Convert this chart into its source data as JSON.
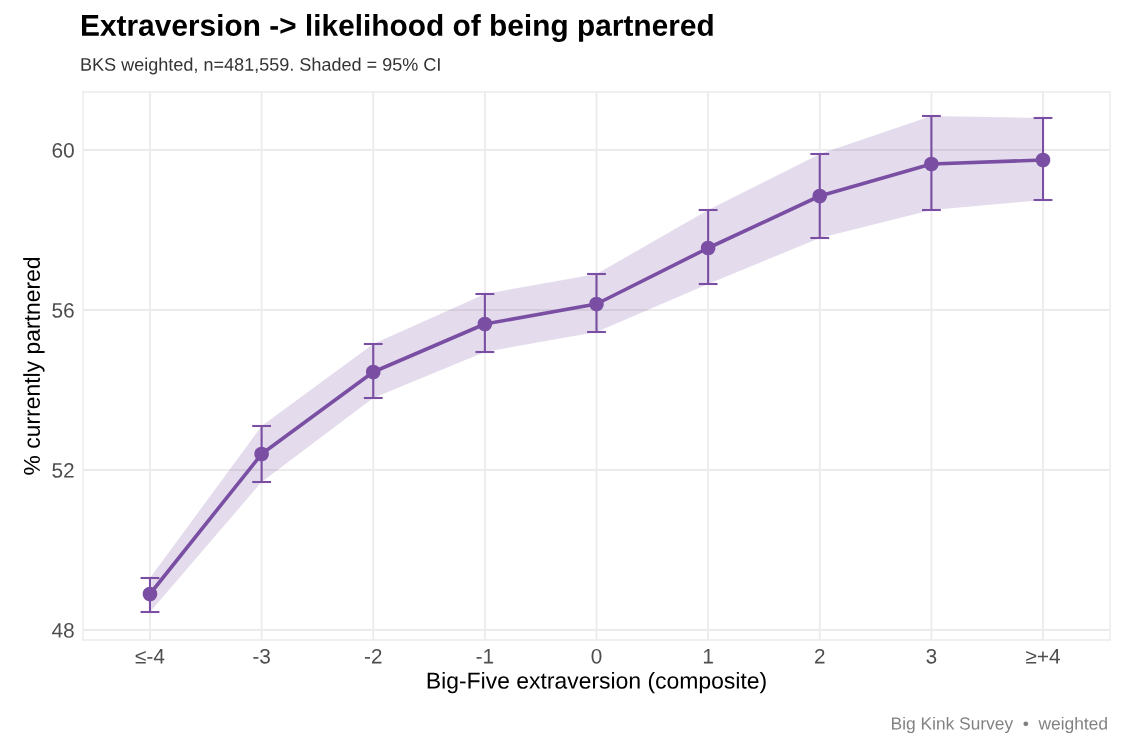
{
  "chart_data": {
    "type": "line",
    "title": "Extraversion -> likelihood of being partnered",
    "subtitle": "BKS weighted, n=481,559. Shaded = 95% CI",
    "xlabel": "Big-Five extraversion (composite)",
    "ylabel": "% currently partnered",
    "annotations": [
      "Big Kink Survey  •  weighted"
    ],
    "categories": [
      "≤-4",
      "-3",
      "-2",
      "-1",
      "0",
      "1",
      "2",
      "3",
      "≥+4"
    ],
    "series": [
      {
        "color": "#7a4fa3",
        "values": [
          48.9,
          52.4,
          54.45,
          55.65,
          56.15,
          57.55,
          58.85,
          59.65,
          59.75
        ],
        "errors": [
          [
            48.45,
            49.3
          ],
          [
            51.7,
            53.1
          ],
          [
            53.8,
            55.15
          ],
          [
            54.95,
            56.4
          ],
          [
            55.45,
            56.9
          ],
          [
            56.65,
            58.5
          ],
          [
            57.8,
            59.9
          ],
          [
            58.5,
            60.85
          ],
          [
            58.75,
            60.8
          ]
        ],
        "lower": [
          48.45,
          51.7,
          53.8,
          54.95,
          55.45,
          56.65,
          57.8,
          58.5,
          58.75
        ],
        "upper": [
          49.3,
          53.1,
          55.15,
          56.4,
          56.9,
          58.5,
          59.9,
          60.85,
          60.8
        ]
      }
    ],
    "ylim": [
      47.75,
      61.45
    ],
    "yticks": [
      48,
      52,
      56,
      60
    ],
    "grid": true,
    "marker": "circle",
    "line_style": "solid"
  }
}
